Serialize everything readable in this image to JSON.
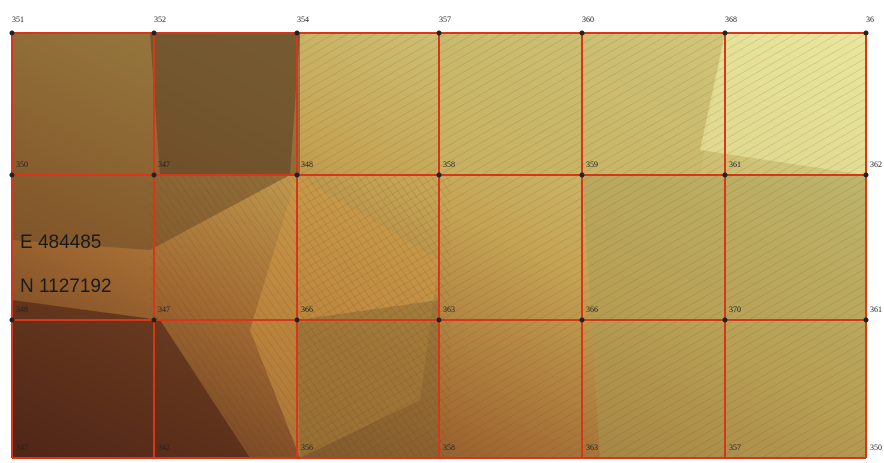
{
  "map": {
    "top_labels": [
      "351",
      "352",
      "354",
      "357",
      "360",
      "368",
      "36"
    ],
    "grid_labels": [
      [
        "350",
        "347",
        "348",
        "358",
        "359",
        "361",
        "362"
      ],
      [
        "348",
        "347",
        "366",
        "363",
        "366",
        "370",
        "361"
      ],
      [
        "347",
        "342",
        "356",
        "358",
        "363",
        "357",
        "350"
      ]
    ],
    "easting": "E 484485",
    "northing": "N 1127192"
  }
}
